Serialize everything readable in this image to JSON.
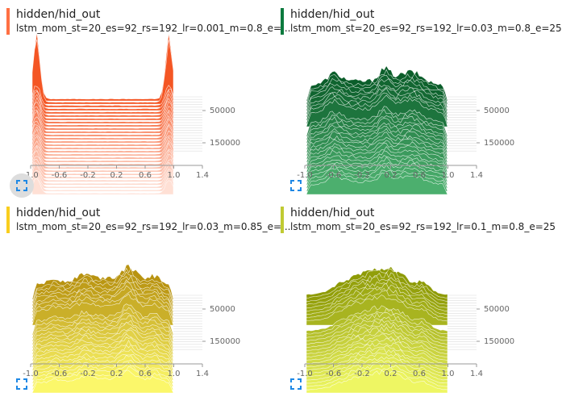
{
  "cards": [
    {
      "title": "hidden/hid_out",
      "subtitle": "lstm_mom_st=20_es=92_rs=192_lr=0.001_m=0.8_e=...",
      "color": "#ff7043",
      "expand_active": true
    },
    {
      "title": "hidden/hid_out",
      "subtitle": "lstm_mom_st=20_es=92_rs=192_lr=0.03_m=0.8_e=25",
      "color": "#0b7a3e",
      "expand_active": false
    },
    {
      "title": "hidden/hid_out",
      "subtitle": "lstm_mom_st=20_es=92_rs=192_lr=0.03_m=0.85_e=...",
      "color": "#f9ce1d",
      "expand_active": false
    },
    {
      "title": "hidden/hid_out",
      "subtitle": "lstm_mom_st=20_es=92_rs=192_lr=0.1_m=0.8_e=25",
      "color": "#c0ca33",
      "expand_active": false
    }
  ],
  "icons": {
    "expand": "fullscreen-icon"
  },
  "chart_data": [
    {
      "type": "area",
      "x_ticks": [
        "-1.0",
        "-0.6",
        "-0.2",
        "0.2",
        "0.6",
        "1.0",
        "1.4"
      ],
      "y_ticks": [
        "50000",
        "150000"
      ],
      "xlim": [
        -1.0,
        1.4
      ],
      "color_light": "#ffe0d5",
      "color_dark": "#f4511e",
      "profile": "edges"
    },
    {
      "type": "area",
      "x_ticks": [
        "-1.0",
        "-0.6",
        "-0.2",
        "0.2",
        "0.6",
        "1.0",
        "1.4"
      ],
      "y_ticks": [
        "50000",
        "150000"
      ],
      "xlim": [
        -1.0,
        1.4
      ],
      "color_light": "#4caf6e",
      "color_dark": "#0b5e2a",
      "profile": "plateau"
    },
    {
      "type": "area",
      "x_ticks": [
        "-1.0",
        "-0.6",
        "-0.2",
        "0.2",
        "0.6",
        "1.0",
        "1.4"
      ],
      "y_ticks": [
        "50000",
        "150000"
      ],
      "xlim": [
        -1.0,
        1.4
      ],
      "color_light": "#fbf76a",
      "color_dark": "#b89310",
      "profile": "plateau"
    },
    {
      "type": "area",
      "x_ticks": [
        "-1.0",
        "-0.6",
        "-0.2",
        "0.2",
        "0.6",
        "1.0",
        "1.4"
      ],
      "y_ticks": [
        "50000",
        "150000"
      ],
      "xlim": [
        -1.0,
        1.4
      ],
      "color_light": "#eef663",
      "color_dark": "#8e9b06",
      "profile": "bell"
    }
  ]
}
